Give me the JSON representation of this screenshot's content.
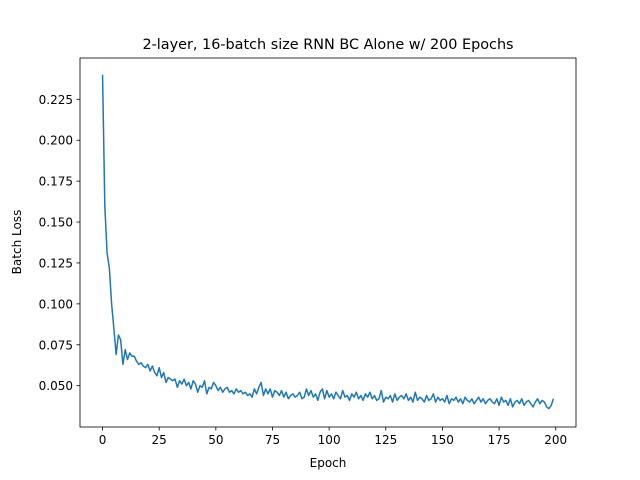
{
  "chart_data": {
    "type": "line",
    "title": "2-layer, 16-batch size RNN BC Alone w/ 200 Epochs",
    "x_label": "Epoch",
    "y_label": "Batch Loss",
    "x": [
      0,
      1,
      2,
      3,
      4,
      5,
      6,
      7,
      8,
      9,
      10,
      11,
      12,
      13,
      14,
      15,
      16,
      17,
      18,
      19,
      20,
      21,
      22,
      23,
      24,
      25,
      26,
      27,
      28,
      29,
      30,
      31,
      32,
      33,
      34,
      35,
      36,
      37,
      38,
      39,
      40,
      41,
      42,
      43,
      44,
      45,
      46,
      47,
      48,
      49,
      50,
      51,
      52,
      53,
      54,
      55,
      56,
      57,
      58,
      59,
      60,
      61,
      62,
      63,
      64,
      65,
      66,
      67,
      68,
      69,
      70,
      71,
      72,
      73,
      74,
      75,
      76,
      77,
      78,
      79,
      80,
      81,
      82,
      83,
      84,
      85,
      86,
      87,
      88,
      89,
      90,
      91,
      92,
      93,
      94,
      95,
      96,
      97,
      98,
      99,
      100,
      101,
      102,
      103,
      104,
      105,
      106,
      107,
      108,
      109,
      110,
      111,
      112,
      113,
      114,
      115,
      116,
      117,
      118,
      119,
      120,
      121,
      122,
      123,
      124,
      125,
      126,
      127,
      128,
      129,
      130,
      131,
      132,
      133,
      134,
      135,
      136,
      137,
      138,
      139,
      140,
      141,
      142,
      143,
      144,
      145,
      146,
      147,
      148,
      149,
      150,
      151,
      152,
      153,
      154,
      155,
      156,
      157,
      158,
      159,
      160,
      161,
      162,
      163,
      164,
      165,
      166,
      167,
      168,
      169,
      170,
      171,
      172,
      173,
      174,
      175,
      176,
      177,
      178,
      179,
      180,
      181,
      182,
      183,
      184,
      185,
      186,
      187,
      188,
      189,
      190,
      191,
      192,
      193,
      194,
      195,
      196,
      197,
      198,
      199
    ],
    "series": [
      {
        "color": "#1f77b4",
        "values": [
          0.24,
          0.16,
          0.131,
          0.122,
          0.1,
          0.085,
          0.069,
          0.081,
          0.078,
          0.063,
          0.072,
          0.066,
          0.07,
          0.068,
          0.068,
          0.065,
          0.063,
          0.064,
          0.062,
          0.061,
          0.063,
          0.059,
          0.062,
          0.058,
          0.056,
          0.061,
          0.055,
          0.058,
          0.052,
          0.055,
          0.054,
          0.053,
          0.054,
          0.049,
          0.053,
          0.051,
          0.054,
          0.05,
          0.052,
          0.048,
          0.053,
          0.051,
          0.046,
          0.05,
          0.049,
          0.053,
          0.045,
          0.049,
          0.048,
          0.052,
          0.05,
          0.047,
          0.049,
          0.046,
          0.048,
          0.049,
          0.046,
          0.047,
          0.045,
          0.048,
          0.046,
          0.047,
          0.045,
          0.046,
          0.044,
          0.045,
          0.043,
          0.048,
          0.045,
          0.049,
          0.052,
          0.044,
          0.048,
          0.045,
          0.048,
          0.043,
          0.047,
          0.046,
          0.044,
          0.047,
          0.043,
          0.046,
          0.042,
          0.044,
          0.045,
          0.043,
          0.044,
          0.046,
          0.042,
          0.043,
          0.048,
          0.044,
          0.047,
          0.043,
          0.045,
          0.041,
          0.046,
          0.048,
          0.042,
          0.047,
          0.043,
          0.045,
          0.042,
          0.046,
          0.044,
          0.042,
          0.047,
          0.043,
          0.044,
          0.041,
          0.045,
          0.043,
          0.046,
          0.042,
          0.044,
          0.041,
          0.045,
          0.043,
          0.046,
          0.042,
          0.044,
          0.041,
          0.042,
          0.047,
          0.04,
          0.043,
          0.042,
          0.044,
          0.04,
          0.045,
          0.041,
          0.043,
          0.044,
          0.042,
          0.045,
          0.041,
          0.043,
          0.04,
          0.046,
          0.041,
          0.043,
          0.042,
          0.04,
          0.044,
          0.041,
          0.042,
          0.045,
          0.04,
          0.043,
          0.041,
          0.042,
          0.04,
          0.044,
          0.039,
          0.042,
          0.041,
          0.043,
          0.04,
          0.042,
          0.039,
          0.043,
          0.041,
          0.04,
          0.042,
          0.039,
          0.041,
          0.043,
          0.04,
          0.042,
          0.039,
          0.041,
          0.042,
          0.04,
          0.039,
          0.042,
          0.038,
          0.043,
          0.04,
          0.041,
          0.038,
          0.042,
          0.037,
          0.04,
          0.041,
          0.039,
          0.042,
          0.038,
          0.04,
          0.041,
          0.039,
          0.037,
          0.04,
          0.042,
          0.039,
          0.041,
          0.04,
          0.037,
          0.036,
          0.038,
          0.042
        ]
      }
    ],
    "xlim": [
      -9.95,
      208.95
    ],
    "ylim": [
      0.02475,
      0.25025
    ],
    "xticks": [
      0,
      25,
      50,
      75,
      100,
      125,
      150,
      175,
      200
    ],
    "yticks": [
      {
        "value": 0.05,
        "label": "0.050"
      },
      0.075,
      {
        "value": 0.1,
        "label": "0.100"
      },
      0.125,
      {
        "value": 0.15,
        "label": "0.150"
      },
      0.175,
      {
        "value": 0.2,
        "label": "0.200"
      },
      0.225
    ]
  }
}
